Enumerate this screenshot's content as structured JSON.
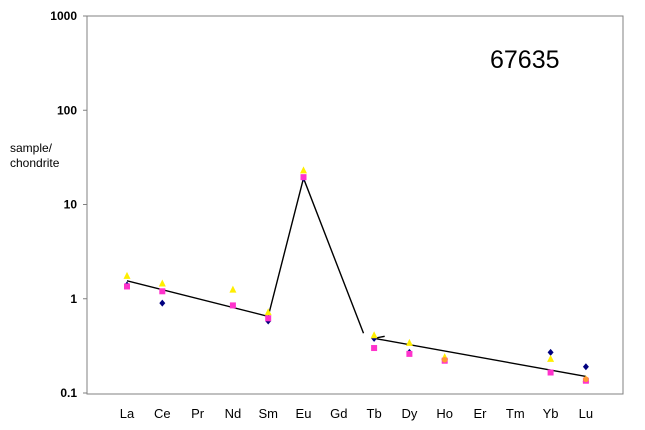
{
  "chart_data": {
    "type": "scatter",
    "title": "",
    "annotation": "67635",
    "ylabel_lines": [
      "sample/",
      "chondrite"
    ],
    "xlabel": "",
    "y_scale": "log",
    "ylim": [
      0.1,
      1000
    ],
    "yticks": [
      {
        "value": 1000,
        "label": "1000"
      },
      {
        "value": 100,
        "label": "100"
      },
      {
        "value": 10,
        "label": "10"
      },
      {
        "value": 1,
        "label": "1"
      },
      {
        "value": 0.1,
        "label": "0.1"
      }
    ],
    "categories": [
      "La",
      "Ce",
      "Pr",
      "Nd",
      "Sm",
      "Eu",
      "Gd",
      "Tb",
      "Dy",
      "Ho",
      "Er",
      "Tm",
      "Yb",
      "Lu"
    ],
    "grid": false,
    "legend": "none",
    "series": [
      {
        "marker": "diamond",
        "color": "#00007f",
        "values": [
          1.4,
          0.9,
          null,
          null,
          0.58,
          19,
          null,
          0.38,
          0.27,
          0.23,
          null,
          null,
          0.27,
          0.19
        ]
      },
      {
        "marker": "square",
        "color": "#ff33cc",
        "values": [
          1.35,
          1.2,
          null,
          0.85,
          0.62,
          19.5,
          null,
          0.3,
          0.26,
          0.22,
          null,
          null,
          0.165,
          0.135
        ]
      },
      {
        "marker": "triangle",
        "color": "#ffee00",
        "values": [
          1.75,
          1.45,
          null,
          1.25,
          0.72,
          23,
          null,
          0.41,
          0.34,
          0.24,
          null,
          null,
          0.23,
          0.14
        ]
      },
      {
        "marker": "circle",
        "color": "#ff9933",
        "values": [
          null,
          null,
          null,
          null,
          null,
          null,
          null,
          null,
          null,
          0.225,
          null,
          null,
          null,
          0.14
        ]
      }
    ],
    "lines": [
      {
        "color": "#000000",
        "points": [
          [
            "La",
            1.55
          ],
          [
            "Sm",
            0.65
          ],
          [
            "Eu",
            19
          ],
          [
            6.7,
            0.43
          ]
        ]
      },
      {
        "color": "#000000",
        "points": [
          [
            7.3,
            0.4
          ],
          [
            "Tb",
            0.38
          ],
          [
            "Lu",
            0.15
          ]
        ]
      }
    ]
  }
}
